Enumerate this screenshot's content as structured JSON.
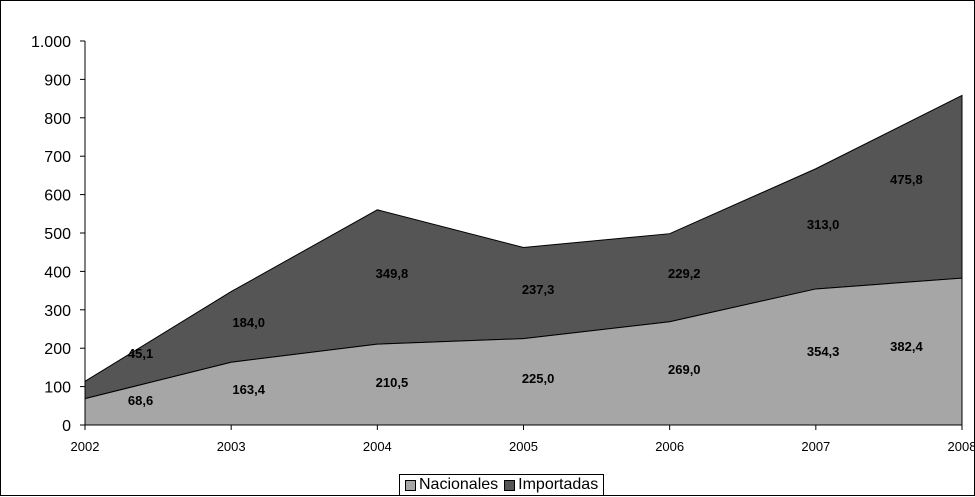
{
  "chart_data": {
    "type": "area",
    "stacked": true,
    "title": "",
    "xlabel": "",
    "ylabel": "",
    "categories": [
      "2002",
      "2003",
      "2004",
      "2005",
      "2006",
      "2007",
      "2008"
    ],
    "ylim": [
      0,
      1000
    ],
    "yticks": [
      0,
      100,
      200,
      300,
      400,
      500,
      600,
      700,
      800,
      900,
      1000
    ],
    "ytick_labels": [
      "0",
      "100",
      "200",
      "300",
      "400",
      "500",
      "600",
      "700",
      "800",
      "900",
      "1.000"
    ],
    "grid": false,
    "legend_position": "bottom",
    "series": [
      {
        "name": "Nacionales",
        "color": "#a6a6a6",
        "values": [
          68.6,
          163.4,
          210.5,
          225.0,
          269.0,
          354.3,
          382.4
        ],
        "labels": [
          "68,6",
          "163,4",
          "210,5",
          "225,0",
          "269,0",
          "354,3",
          "382,4"
        ]
      },
      {
        "name": "Importadas",
        "color": "#555555",
        "values": [
          45.1,
          184.0,
          349.8,
          237.3,
          229.2,
          313.0,
          475.8
        ],
        "labels": [
          "45,1",
          "184,0",
          "349,8",
          "237,3",
          "229,2",
          "313,0",
          "475,8"
        ]
      }
    ]
  }
}
